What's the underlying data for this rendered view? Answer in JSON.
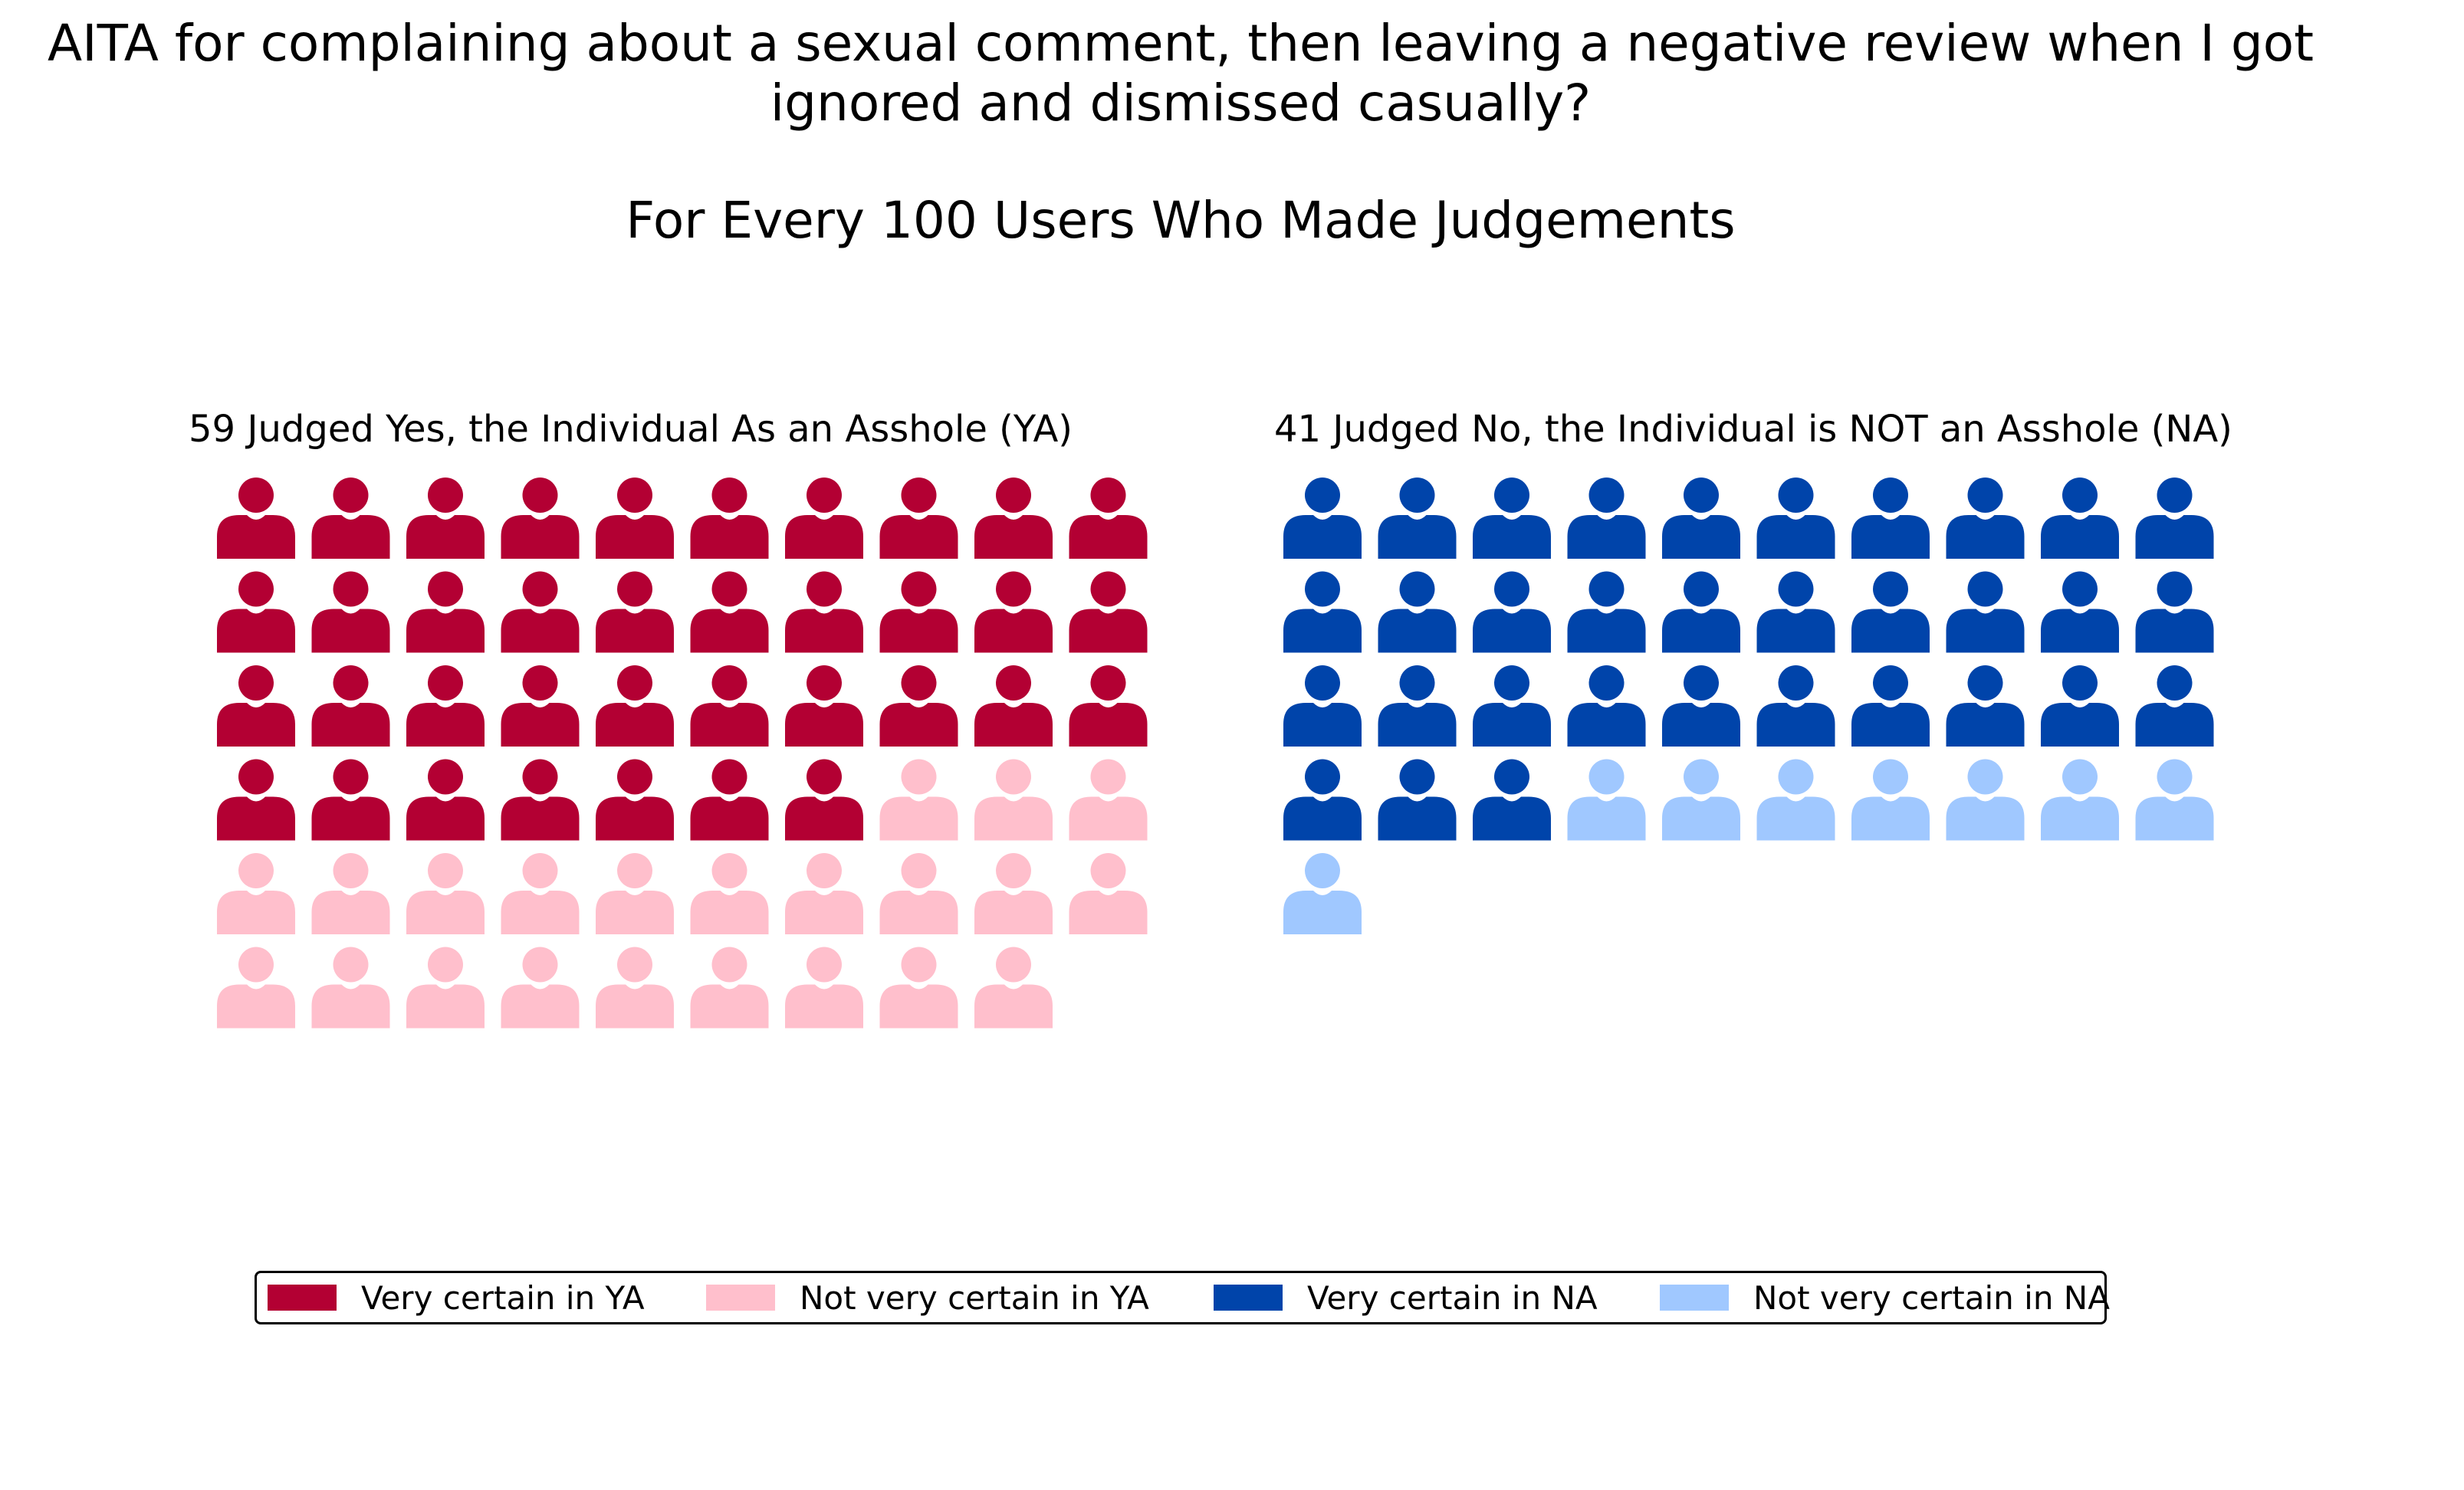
{
  "chart_data": {
    "type": "waffle",
    "title_lines": [
      "AITA for complaining about a sexual comment, then leaving a negative review when I got",
      "ignored and dismissed casually?"
    ],
    "subtitle": "For Every 100 Users Who Made Judgements",
    "panels": [
      {
        "title": "59 Judged Yes, the Individual As an Asshole (YA)",
        "total": 59,
        "segments": [
          {
            "name": "Very certain in YA",
            "count": 37,
            "color": "#b30033"
          },
          {
            "name": "Not very certain in YA",
            "count": 22,
            "color": "#ffbfcc"
          }
        ]
      },
      {
        "title": "41 Judged No, the Individual is NOT an Asshole (NA)",
        "total": 41,
        "segments": [
          {
            "name": "Very certain in NA",
            "count": 33,
            "color": "#0044aa"
          },
          {
            "name": "Not very certain in NA",
            "count": 8,
            "color": "#a0c8ff"
          }
        ]
      }
    ],
    "icons_per_row": 10,
    "icon": "person-icon",
    "legend": [
      {
        "label": "Very certain in YA",
        "color": "#b30033"
      },
      {
        "label": "Not very certain in YA",
        "color": "#ffbfcc"
      },
      {
        "label": "Very certain in NA",
        "color": "#0044aa"
      },
      {
        "label": "Not very certain in NA",
        "color": "#a0c8ff"
      }
    ],
    "legend_placement": "bottom-center"
  }
}
